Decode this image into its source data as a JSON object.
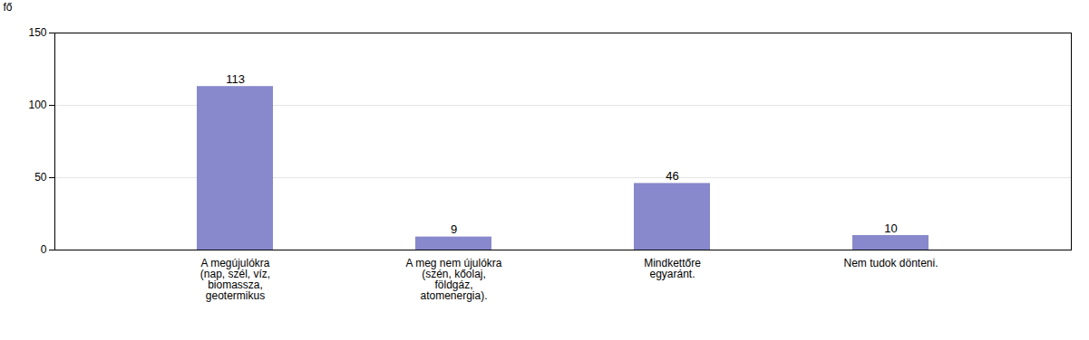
{
  "chart_data": {
    "type": "bar",
    "categories": [
      "A megújulókra\n(nap, szél, víz,\nbiomassza,\ngeotermikus",
      "A meg nem újulókra\n(szén, kőolaj,\nföldgáz,\natomenergia).",
      "Mindkettőre\negyaránt.",
      "Nem tudok dönteni."
    ],
    "values": [
      113,
      9,
      46,
      10
    ],
    "color": "#8888cc",
    "ylabel": "fő",
    "ylim": [
      0,
      150
    ],
    "yticks": [
      0,
      50,
      100,
      150
    ],
    "grid": true,
    "data_labels": true
  }
}
